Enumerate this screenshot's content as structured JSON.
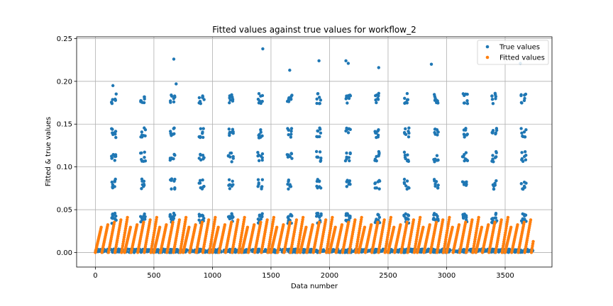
{
  "chart_data": {
    "type": "scatter",
    "title": "Fitted values against true values for workflow_2",
    "xlabel": "Data number",
    "ylabel": "Fitted & true values",
    "xlim": [
      -160,
      3900
    ],
    "ylim": [
      -0.017,
      0.252
    ],
    "x_ticks": [
      0,
      500,
      1000,
      1500,
      2000,
      2500,
      3000,
      3500
    ],
    "y_ticks": [
      0.0,
      0.05,
      0.1,
      0.15,
      0.2,
      0.25
    ],
    "y_tick_labels": [
      "0.00",
      "0.05",
      "0.10",
      "0.15",
      "0.20",
      "0.25"
    ],
    "grid": true,
    "legend_position": "top-right",
    "series": [
      {
        "name": "True values",
        "color": "#1f77b4",
        "cycle_length": 250,
        "cycles": 15,
        "cluster_x_offsets": [
          15,
          40
        ],
        "clusters_y": [
          0.0,
          0.04,
          0.08,
          0.112,
          0.14,
          0.18
        ],
        "outliers": [
          [
            150,
            0.195
          ],
          [
            670,
            0.226
          ],
          [
            690,
            0.197
          ],
          [
            1430,
            0.238
          ],
          [
            1660,
            0.213
          ],
          [
            1910,
            0.224
          ],
          [
            2140,
            0.224
          ],
          [
            2160,
            0.221
          ],
          [
            2420,
            0.216
          ],
          [
            2870,
            0.22
          ],
          [
            3630,
            0.221
          ]
        ]
      },
      {
        "name": "Fitted values",
        "color": "#ff7f0e",
        "cycle_length": 250,
        "cycles": 15,
        "ramp_max": 0.041,
        "ramps_per_cycle": 5
      }
    ]
  }
}
